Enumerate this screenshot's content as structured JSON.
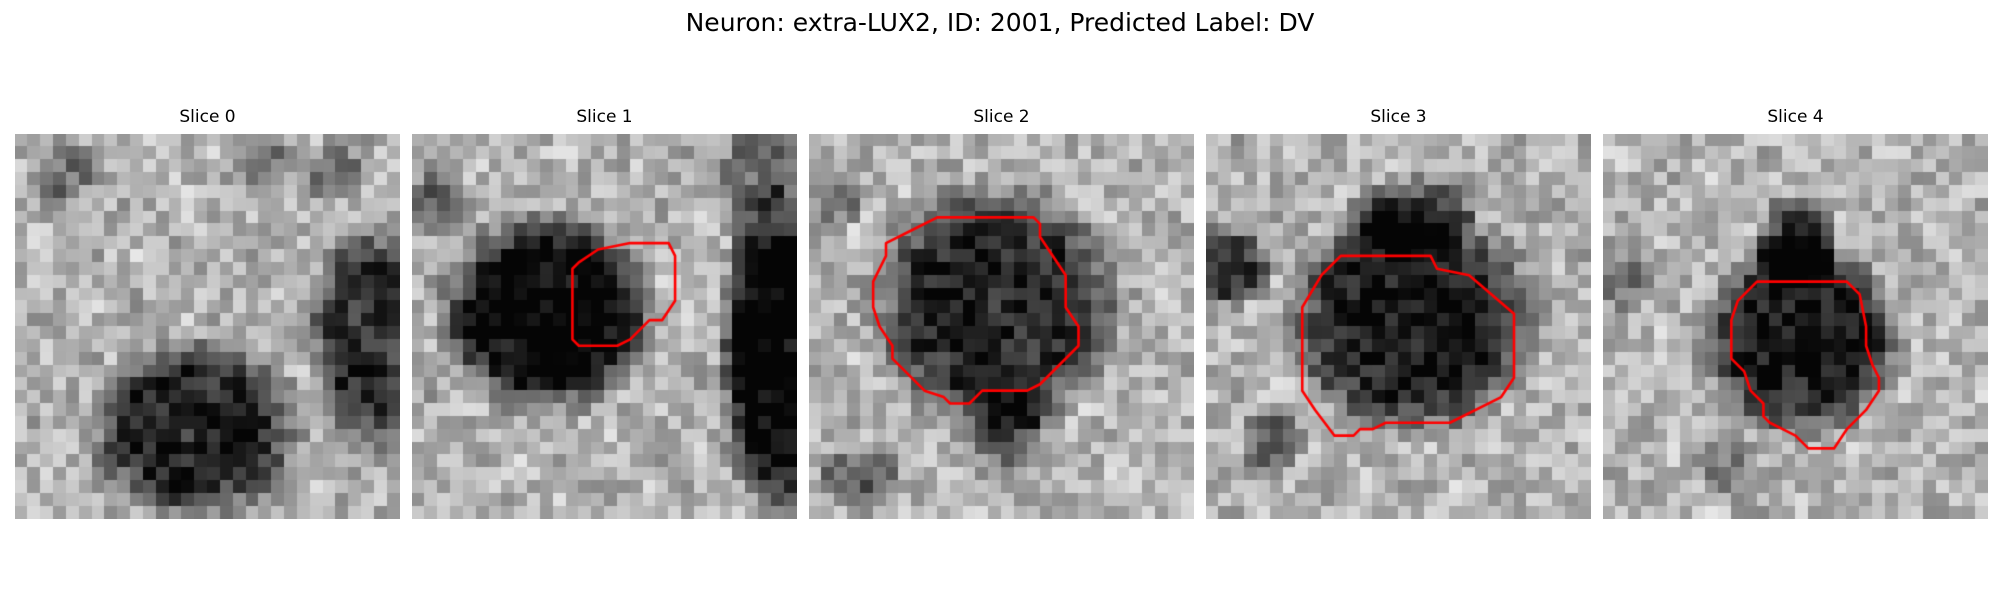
{
  "figure": {
    "title": "Neuron: extra-LUX2, ID: 2001, Predicted Label: DV",
    "contour_color": "#ff0000",
    "colormap": "grayscale",
    "slices": [
      {
        "label": "Slice 0",
        "has_contour": false
      },
      {
        "label": "Slice 1",
        "has_contour": true
      },
      {
        "label": "Slice 2",
        "has_contour": true
      },
      {
        "label": "Slice 3",
        "has_contour": true
      },
      {
        "label": "Slice 4",
        "has_contour": true
      }
    ]
  }
}
